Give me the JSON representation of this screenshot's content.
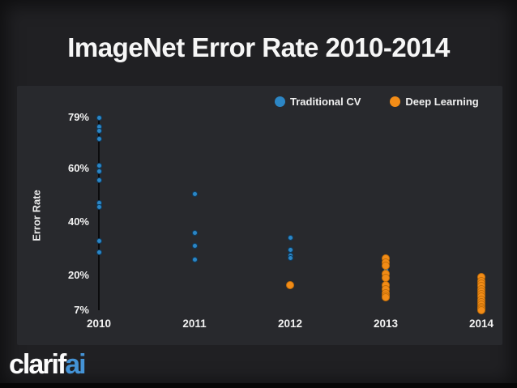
{
  "slide": {
    "title": "ImageNet Error Rate 2010-2014"
  },
  "logo": {
    "part1": "clarif",
    "part2": "ai",
    "accent_color": "#4493d6"
  },
  "chart_data": {
    "type": "scatter",
    "title": "ImageNet Error Rate 2010-2014",
    "xlabel": "",
    "ylabel": "Error Rate",
    "x_categories": [
      "2010",
      "2011",
      "2012",
      "2013",
      "2014"
    ],
    "y_range": [
      7,
      79
    ],
    "y_ticks": [
      {
        "value": 79,
        "label": "79%"
      },
      {
        "value": 60,
        "label": "60%"
      },
      {
        "value": 40,
        "label": "40%"
      },
      {
        "value": 20,
        "label": "20%"
      },
      {
        "value": 7,
        "label": "7%"
      }
    ],
    "grid": false,
    "legend_position": "top-right",
    "panel_color": "#28292d",
    "range_line": {
      "category": "2010",
      "from": 79,
      "to": 7,
      "color": "#0b0b0d"
    },
    "series": [
      {
        "name": "Traditional CV",
        "color": "#2c86c5",
        "edge_color": "#0e3e63",
        "dot_size": 7,
        "points": [
          {
            "x": "2010",
            "y": 79.0
          },
          {
            "x": "2010",
            "y": 75.5
          },
          {
            "x": "2010",
            "y": 74.0
          },
          {
            "x": "2010",
            "y": 71.0
          },
          {
            "x": "2010",
            "y": 61.0
          },
          {
            "x": "2010",
            "y": 59.0
          },
          {
            "x": "2010",
            "y": 55.5
          },
          {
            "x": "2010",
            "y": 47.0
          },
          {
            "x": "2010",
            "y": 45.5
          },
          {
            "x": "2010",
            "y": 33.0
          },
          {
            "x": "2010",
            "y": 28.5
          },
          {
            "x": "2011",
            "y": 50.5
          },
          {
            "x": "2011",
            "y": 36.0
          },
          {
            "x": "2011",
            "y": 31.0
          },
          {
            "x": "2011",
            "y": 26.0
          },
          {
            "x": "2012",
            "y": 34.0
          },
          {
            "x": "2012",
            "y": 29.5
          },
          {
            "x": "2012",
            "y": 27.5
          },
          {
            "x": "2012",
            "y": 26.5
          },
          {
            "x": "2013",
            "y": 22.0
          }
        ]
      },
      {
        "name": "Deep Learning",
        "color": "#f28c17",
        "edge_color": "#c46e08",
        "dot_size": 10,
        "points": [
          {
            "x": "2012",
            "y": 16.4
          },
          {
            "x": "2013",
            "y": 26.5
          },
          {
            "x": "2013",
            "y": 25.0
          },
          {
            "x": "2013",
            "y": 23.5
          },
          {
            "x": "2013",
            "y": 20.5
          },
          {
            "x": "2013",
            "y": 19.0
          },
          {
            "x": "2013",
            "y": 16.3
          },
          {
            "x": "2013",
            "y": 15.0
          },
          {
            "x": "2013",
            "y": 13.5
          },
          {
            "x": "2013",
            "y": 12.5
          },
          {
            "x": "2013",
            "y": 11.7
          },
          {
            "x": "2014",
            "y": 19.3
          },
          {
            "x": "2014",
            "y": 18.0
          },
          {
            "x": "2014",
            "y": 17.0
          },
          {
            "x": "2014",
            "y": 16.0
          },
          {
            "x": "2014",
            "y": 15.0
          },
          {
            "x": "2014",
            "y": 14.0
          },
          {
            "x": "2014",
            "y": 13.0
          },
          {
            "x": "2014",
            "y": 12.0
          },
          {
            "x": "2014",
            "y": 11.0
          },
          {
            "x": "2014",
            "y": 10.0
          },
          {
            "x": "2014",
            "y": 9.0
          },
          {
            "x": "2014",
            "y": 8.3
          },
          {
            "x": "2014",
            "y": 7.5
          },
          {
            "x": "2014",
            "y": 7.0
          }
        ]
      }
    ]
  }
}
